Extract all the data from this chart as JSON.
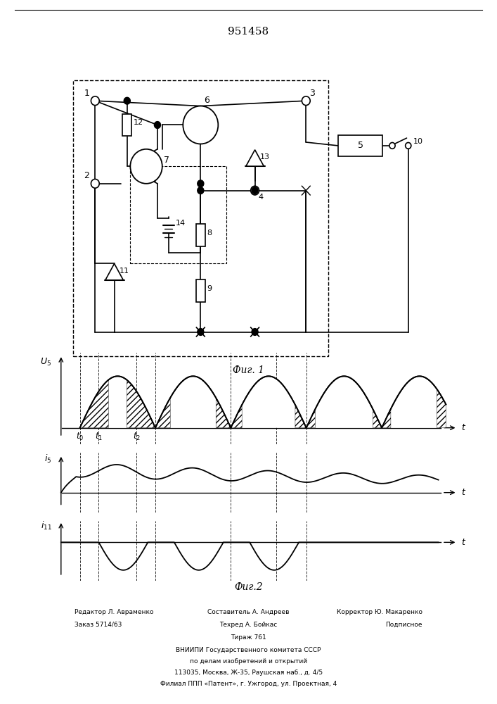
{
  "title": "951458",
  "fig1_caption": "Фиг. 1",
  "fig2_caption": "Фиг.2",
  "background_color": "#ffffff"
}
